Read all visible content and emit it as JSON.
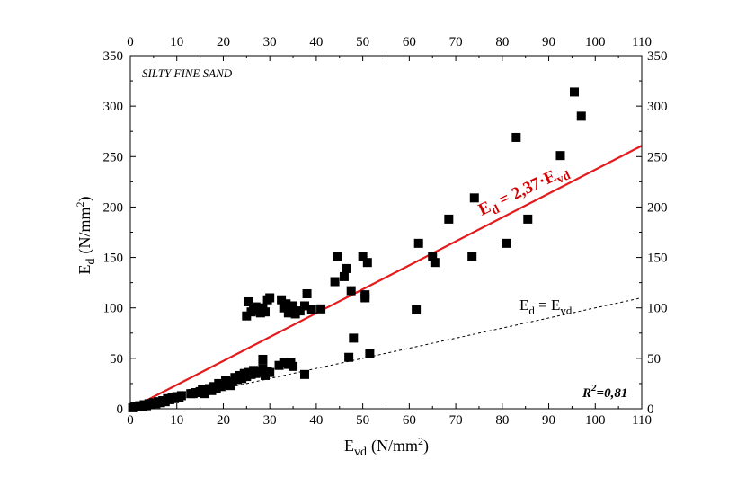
{
  "chart_data": {
    "type": "scatter",
    "title": "SILTY FINE SAND",
    "x_axis": {
      "label": "E",
      "label_sub": "vd",
      "label_units": "(N/mm",
      "label_sup": "2",
      "label_close": ")",
      "range": [
        0,
        110
      ],
      "ticks": [
        0,
        10,
        20,
        30,
        40,
        50,
        60,
        70,
        80,
        90,
        100,
        110
      ]
    },
    "y_axis": {
      "label": "E",
      "label_sub": "d",
      "label_units": "(N/mm",
      "label_sup": "2",
      "label_close": ")",
      "range": [
        0,
        350
      ],
      "ticks": [
        0,
        50,
        100,
        150,
        200,
        250,
        300,
        350
      ]
    },
    "series": [
      {
        "name": "measurements",
        "marker": "square",
        "color": "#000000",
        "points": [
          [
            0.5,
            1
          ],
          [
            1,
            2
          ],
          [
            1.5,
            2
          ],
          [
            2,
            3
          ],
          [
            2.5,
            2
          ],
          [
            3,
            4
          ],
          [
            3.5,
            3
          ],
          [
            4,
            5
          ],
          [
            4.5,
            4
          ],
          [
            5,
            6
          ],
          [
            5.5,
            5
          ],
          [
            6,
            7
          ],
          [
            6.5,
            6
          ],
          [
            7,
            8
          ],
          [
            7.5,
            7
          ],
          [
            8,
            10
          ],
          [
            8.5,
            9
          ],
          [
            9,
            11
          ],
          [
            9.5,
            10
          ],
          [
            10,
            12
          ],
          [
            10.5,
            11
          ],
          [
            11,
            13
          ],
          [
            13,
            15
          ],
          [
            13.5,
            15
          ],
          [
            14,
            16
          ],
          [
            15,
            17
          ],
          [
            15.5,
            19
          ],
          [
            16,
            15
          ],
          [
            17,
            20
          ],
          [
            17.5,
            18
          ],
          [
            18,
            22
          ],
          [
            18.5,
            20
          ],
          [
            19,
            25
          ],
          [
            19.5,
            22
          ],
          [
            20,
            24
          ],
          [
            20.5,
            28
          ],
          [
            21,
            26
          ],
          [
            21.5,
            23
          ],
          [
            22,
            27
          ],
          [
            22.5,
            31
          ],
          [
            23,
            29
          ],
          [
            23.5,
            33
          ],
          [
            24,
            30
          ],
          [
            24.5,
            35
          ],
          [
            25,
            32
          ],
          [
            25.5,
            36
          ],
          [
            26,
            34
          ],
          [
            26.5,
            38
          ],
          [
            27,
            35
          ],
          [
            27.5,
            36
          ],
          [
            28,
            37
          ],
          [
            28.5,
            40
          ],
          [
            29,
            33
          ],
          [
            29.5,
            37
          ],
          [
            30,
            36
          ],
          [
            28.5,
            49
          ],
          [
            32,
            43
          ],
          [
            33,
            46
          ],
          [
            34,
            44
          ],
          [
            34.5,
            46
          ],
          [
            35,
            42
          ],
          [
            37.5,
            34
          ],
          [
            25,
            92
          ],
          [
            25.5,
            106
          ],
          [
            26,
            96
          ],
          [
            26.5,
            99
          ],
          [
            27,
            101
          ],
          [
            27.5,
            97
          ],
          [
            28,
            95
          ],
          [
            28.5,
            100
          ],
          [
            29,
            96
          ],
          [
            29.5,
            108
          ],
          [
            30,
            110
          ],
          [
            32.5,
            108
          ],
          [
            33,
            100
          ],
          [
            33.5,
            104
          ],
          [
            34,
            95
          ],
          [
            34.5,
            97
          ],
          [
            35,
            102
          ],
          [
            35.5,
            94
          ],
          [
            36.5,
            97
          ],
          [
            37.5,
            102
          ],
          [
            38,
            114
          ],
          [
            39,
            98
          ],
          [
            41,
            99
          ],
          [
            44,
            126
          ],
          [
            44.5,
            151
          ],
          [
            46,
            131
          ],
          [
            46.5,
            139
          ],
          [
            47,
            51
          ],
          [
            47.5,
            117
          ],
          [
            48,
            70
          ],
          [
            50,
            151
          ],
          [
            50.5,
            110
          ],
          [
            50.5,
            113
          ],
          [
            51,
            145
          ],
          [
            51.5,
            55
          ],
          [
            61.5,
            98
          ],
          [
            62,
            164
          ],
          [
            65,
            151
          ],
          [
            65.5,
            145
          ],
          [
            68.5,
            188
          ],
          [
            73.5,
            151
          ],
          [
            74,
            209
          ],
          [
            81,
            164
          ],
          [
            83,
            269
          ],
          [
            85.5,
            188
          ],
          [
            92.5,
            251
          ],
          [
            95.5,
            314
          ],
          [
            97,
            290
          ]
        ]
      }
    ],
    "fit_line": {
      "slope": 2.37,
      "label_main": "E",
      "label_sub": "d",
      "label_mid": " = 2,37·E",
      "label_sub2": "vd",
      "color": "#e41a1c"
    },
    "identity_line": {
      "slope": 1,
      "label_main": "E",
      "label_sub": "d",
      "label_mid": " = E",
      "label_sub2": "vd",
      "style": "dashed"
    },
    "r_squared": {
      "prefix": "R",
      "sup": "2",
      "suffix": "=0,81"
    },
    "grid": false,
    "legend": "none"
  }
}
